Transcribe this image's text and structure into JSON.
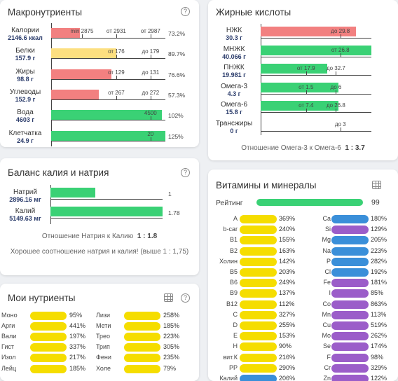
{
  "macro": {
    "title": "Макронутриенты",
    "rows": [
      {
        "name": "Калории",
        "value": "2146.6 ккал",
        "pct": "73.2%",
        "color": "#f28080",
        "fill": 0.25,
        "marks": [
          [
            "min 2875",
            0.27
          ],
          [
            "от 2931",
            0.57
          ],
          [
            "от 2987",
            0.87
          ]
        ]
      },
      {
        "name": "Белки",
        "value": "157.9 г",
        "pct": "89.7%",
        "color": "#fcdf80",
        "fill": 0.57,
        "marks": [
          [
            "от 176",
            0.57
          ],
          [
            "до 179",
            0.87
          ]
        ]
      },
      {
        "name": "Жиры",
        "value": "98.8 г",
        "pct": "76.6%",
        "color": "#f28080",
        "fill": 0.53,
        "marks": [
          [
            "от 129",
            0.57
          ],
          [
            "до 131",
            0.87
          ]
        ]
      },
      {
        "name": "Углеводы",
        "value": "152.9 г",
        "pct": "57.3%",
        "color": "#f28080",
        "fill": 0.42,
        "marks": [
          [
            "от 267",
            0.57
          ],
          [
            "до 272",
            0.87
          ]
        ]
      },
      {
        "name": "Вода",
        "value": "4603 г",
        "pct": "102%",
        "color": "#3ad175",
        "fill": 0.97,
        "marks": [
          [
            "4500",
            0.87
          ]
        ]
      },
      {
        "name": "Клетчатка",
        "value": "24.9 г",
        "pct": "125%",
        "color": "#3ad175",
        "fill": 1.0,
        "marks": [
          [
            "20",
            0.87
          ]
        ]
      }
    ]
  },
  "fatty": {
    "title": "Жирные кислоты",
    "rows": [
      {
        "name": "НЖК",
        "value": "30.3 г",
        "color": "#f28080",
        "fill": 0.86,
        "marks": [
          [
            "до 29.8",
            0.72
          ]
        ]
      },
      {
        "name": "МНЖК",
        "value": "40.066 г",
        "color": "#3ad175",
        "fill": 1.0,
        "marks": [
          [
            "от 26.8",
            0.72
          ]
        ]
      },
      {
        "name": "ПНЖК",
        "value": "19.981 г",
        "color": "#3ad175",
        "fill": 0.6,
        "marks": [
          [
            "от 17.9",
            0.41
          ],
          [
            "до 32.7",
            0.68
          ]
        ]
      },
      {
        "name": "Омега-3",
        "value": "4.3 г",
        "color": "#3ad175",
        "fill": 0.7,
        "marks": [
          [
            "от 1.5",
            0.41
          ],
          [
            "до 6",
            0.68
          ]
        ]
      },
      {
        "name": "Омега-6",
        "value": "15.8 г",
        "color": "#3ad175",
        "fill": 0.7,
        "marks": [
          [
            "от 7.4",
            0.41
          ],
          [
            "до 26.8",
            0.68
          ]
        ]
      },
      {
        "name": "Трансжиры",
        "value": "0 г",
        "color": "#3ad175",
        "fill": 0.0,
        "marks": [
          [
            "до 3",
            0.72
          ]
        ]
      }
    ],
    "ratio_text": "Отношение Омега-3 к Омега-6",
    "ratio_value": "1 : 3.7"
  },
  "kna": {
    "title": "Баланс калия и натрия",
    "rows": [
      {
        "name": "Натрий",
        "value": "2896.16 мг",
        "num": "1",
        "fill": 0.4
      },
      {
        "name": "Калий",
        "value": "5149.63 мг",
        "num": "1.78",
        "fill": 1.0
      }
    ],
    "color": "#3ad175",
    "ratio_text": "Отношение Натрия к Калию",
    "ratio_value": "1 : 1.8",
    "comment": "Хорошее соотношение натрия и калия! (выше 1 : 1,75)"
  },
  "mine": {
    "title": "Мои нутриенты",
    "color": "#f5dd00",
    "left": [
      {
        "name": "Моно",
        "pct": "95%"
      },
      {
        "name": "Арги",
        "pct": "441%"
      },
      {
        "name": "Вали",
        "pct": "197%"
      },
      {
        "name": "Гист",
        "pct": "337%"
      },
      {
        "name": "Изол",
        "pct": "217%"
      },
      {
        "name": "Лейц",
        "pct": "185%"
      }
    ],
    "right": [
      {
        "name": "Лизи",
        "pct": "258%"
      },
      {
        "name": "Мети",
        "pct": "185%"
      },
      {
        "name": "Трео",
        "pct": "223%"
      },
      {
        "name": "Трип",
        "pct": "305%"
      },
      {
        "name": "Фени",
        "pct": "235%"
      },
      {
        "name": "Холе",
        "pct": "79%"
      }
    ]
  },
  "vit": {
    "title": "Витамины и минералы",
    "rating_label": "Рейтинг",
    "rating_value": "99",
    "rating_color": "#3ad175",
    "left": [
      {
        "name": "A",
        "pct": "369%",
        "color": "#f5dd00"
      },
      {
        "name": "b-car",
        "pct": "240%",
        "color": "#f5dd00"
      },
      {
        "name": "B1",
        "pct": "155%",
        "color": "#f5dd00"
      },
      {
        "name": "B2",
        "pct": "163%",
        "color": "#f5dd00"
      },
      {
        "name": "Холин",
        "pct": "142%",
        "color": "#f5dd00"
      },
      {
        "name": "B5",
        "pct": "203%",
        "color": "#f5dd00"
      },
      {
        "name": "B6",
        "pct": "249%",
        "color": "#f5dd00"
      },
      {
        "name": "B9",
        "pct": "137%",
        "color": "#f5dd00"
      },
      {
        "name": "B12",
        "pct": "112%",
        "color": "#f5dd00"
      },
      {
        "name": "C",
        "pct": "327%",
        "color": "#f5dd00"
      },
      {
        "name": "D",
        "pct": "255%",
        "color": "#f5dd00"
      },
      {
        "name": "E",
        "pct": "153%",
        "color": "#f5dd00"
      },
      {
        "name": "H",
        "pct": "90%",
        "color": "#f5dd00"
      },
      {
        "name": "вит.К",
        "pct": "216%",
        "color": "#f5dd00"
      },
      {
        "name": "PP",
        "pct": "290%",
        "color": "#f5dd00"
      },
      {
        "name": "Калий",
        "pct": "206%",
        "color": "#3a8fd9"
      }
    ],
    "right": [
      {
        "name": "Ca",
        "pct": "180%",
        "color": "#3a8fd9"
      },
      {
        "name": "Si",
        "pct": "129%",
        "color": "#9b5dc9"
      },
      {
        "name": "Mg",
        "pct": "205%",
        "color": "#3a8fd9"
      },
      {
        "name": "Na",
        "pct": "223%",
        "color": "#3a8fd9"
      },
      {
        "name": "P",
        "pct": "282%",
        "color": "#3a8fd9"
      },
      {
        "name": "Cl",
        "pct": "192%",
        "color": "#3a8fd9"
      },
      {
        "name": "Fe",
        "pct": "181%",
        "color": "#9b5dc9"
      },
      {
        "name": "I",
        "pct": "85%",
        "color": "#9b5dc9"
      },
      {
        "name": "Co",
        "pct": "863%",
        "color": "#9b5dc9"
      },
      {
        "name": "Mn",
        "pct": "113%",
        "color": "#9b5dc9"
      },
      {
        "name": "Cu",
        "pct": "519%",
        "color": "#9b5dc9"
      },
      {
        "name": "Mo",
        "pct": "262%",
        "color": "#9b5dc9"
      },
      {
        "name": "Se",
        "pct": "174%",
        "color": "#9b5dc9"
      },
      {
        "name": "F",
        "pct": "98%",
        "color": "#9b5dc9"
      },
      {
        "name": "Cr",
        "pct": "329%",
        "color": "#9b5dc9"
      },
      {
        "name": "Zn",
        "pct": "122%",
        "color": "#9b5dc9"
      }
    ]
  }
}
